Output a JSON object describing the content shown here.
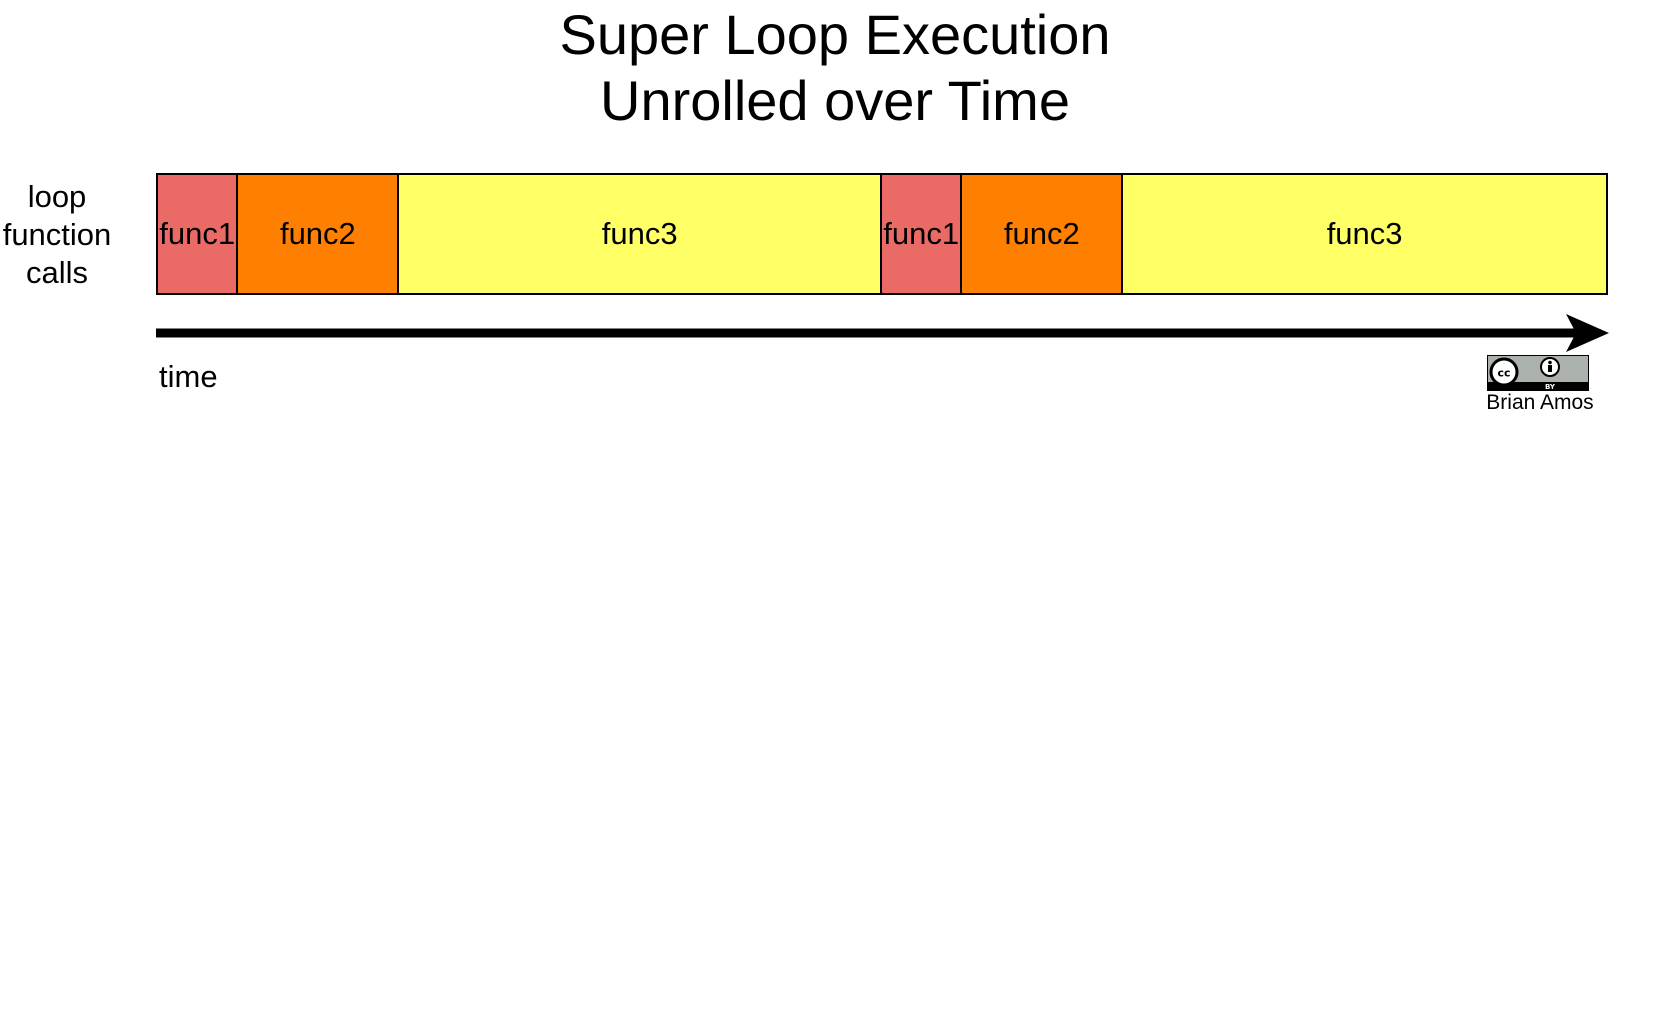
{
  "title": {
    "line1": "Super Loop Execution",
    "line2": "Unrolled over Time"
  },
  "row_label": {
    "line1": "loop",
    "line2": "function",
    "line3": "calls"
  },
  "segments": [
    {
      "label": "func1",
      "duration": 1,
      "color": "#ea6b66"
    },
    {
      "label": "func2",
      "duration": 2,
      "color": "#ff8000"
    },
    {
      "label": "func3",
      "duration": 6,
      "color": "#ffff66"
    },
    {
      "label": "func1",
      "duration": 1,
      "color": "#ea6b66"
    },
    {
      "label": "func2",
      "duration": 2,
      "color": "#ff8000"
    },
    {
      "label": "func3",
      "duration": 6,
      "color": "#ffff66"
    }
  ],
  "axis": {
    "label": "time"
  },
  "license": {
    "badge_icons": [
      "cc-icon",
      "by-attribution-icon"
    ],
    "badge_text": "BY",
    "author": "Brian Amos"
  }
}
